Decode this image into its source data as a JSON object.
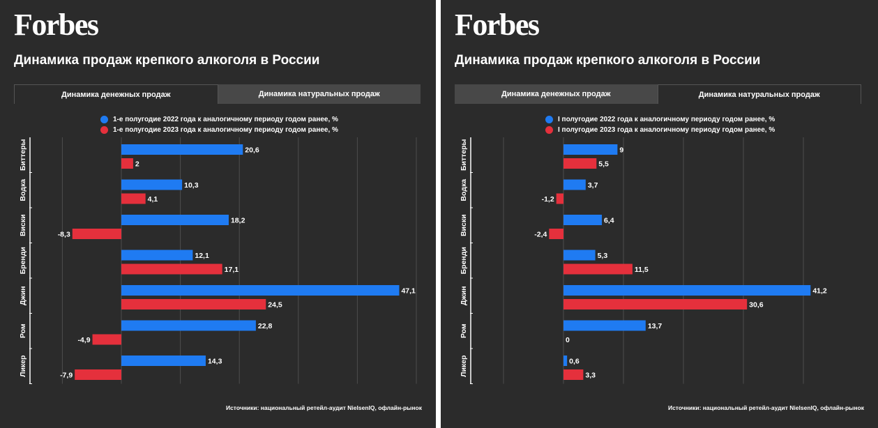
{
  "panels": [
    {
      "logo": "Forbes",
      "title": "Динамика продаж крепкого алкоголя в России",
      "tabs": [
        {
          "label": "Динамика денежных продаж",
          "active": true
        },
        {
          "label": "Динамика натуральных продаж",
          "active": false
        }
      ],
      "source": "Источники: национальный ретейл-аудит NielsenIQ, офлайн-рынок"
    },
    {
      "logo": "Forbes",
      "title": "Динамика продаж крепкого алкоголя в России",
      "tabs": [
        {
          "label": "Динамика денежных продаж",
          "active": false
        },
        {
          "label": "Динамика натуральных продаж",
          "active": true
        }
      ],
      "source": "Источники: национальный ретейл-аудит NielsenIQ, офлайн-рынок"
    }
  ],
  "colors": {
    "blue": "#1f7bf2",
    "red": "#e5303c",
    "background": "#2b2b2b",
    "grid": "#4e4e4e"
  },
  "chart_data": [
    {
      "type": "bar",
      "orientation": "horizontal",
      "categories": [
        "Биттеры",
        "Водка",
        "Виски",
        "Бренди",
        "Джин",
        "Ром",
        "Ликер"
      ],
      "series": [
        {
          "name": "1-е полугодие 2022 года к аналогичному периоду годом ранее, %",
          "values": [
            20.6,
            10.3,
            18.2,
            12.1,
            47.1,
            22.8,
            14.3
          ],
          "labels": [
            "20,6",
            "10,3",
            "18,2",
            "12,1",
            "47,1",
            "22,8",
            "14,3"
          ]
        },
        {
          "name": "1-е полугодие 2023 года к аналогичному периоду годом ранее, %",
          "values": [
            2,
            4.1,
            -8.3,
            17.1,
            24.5,
            -4.9,
            -7.9
          ],
          "labels": [
            "2",
            "4,1",
            "-8,3",
            "17,1",
            "24,5",
            "-4,9",
            "-7,9"
          ]
        }
      ],
      "xlim": [
        -20,
        50
      ],
      "grid": true,
      "legend": "top"
    },
    {
      "type": "bar",
      "orientation": "horizontal",
      "categories": [
        "Биттеры",
        "Водка",
        "Виски",
        "Бренди",
        "Джин",
        "Ром",
        "Ликер"
      ],
      "series": [
        {
          "name": "I полугодие 2022 года к аналогичному периоду годом ранее, %",
          "values": [
            9,
            3.7,
            6.4,
            5.3,
            41.2,
            13.7,
            0.6
          ],
          "labels": [
            "9",
            "3,7",
            "6,4",
            "5,3",
            "41,2",
            "13,7",
            "0,6"
          ]
        },
        {
          "name": "I полугодие 2023 года к аналогичному периоду годом ранее, %",
          "values": [
            5.5,
            -1.2,
            -2.4,
            11.5,
            30.6,
            0,
            3.3
          ],
          "labels": [
            "5,5",
            "-1,2",
            "-2,4",
            "11,5",
            "30,6",
            "0",
            "3,3"
          ]
        }
      ],
      "xlim": [
        -20,
        40
      ],
      "grid": true,
      "legend": "top"
    }
  ]
}
